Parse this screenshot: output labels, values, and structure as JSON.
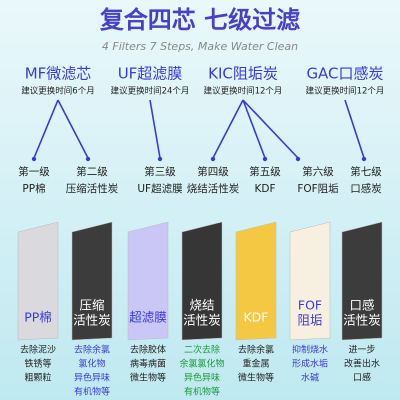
{
  "header": {
    "title": "复合四芯  七级过滤",
    "subtitle": "4 Filters 7 Steps, Make Water Clean"
  },
  "filters": [
    {
      "name": "MF微滤芯",
      "replace": "建议更换时间6个月"
    },
    {
      "name": "UF超滤膜",
      "replace": "建议更换时间24个月"
    },
    {
      "name": "KIC阻垢炭",
      "replace": "建议更换时间12个月"
    },
    {
      "name": "GAC口感炭",
      "replace": "建议更换时间12个月"
    }
  ],
  "stages": [
    {
      "level": "第一级",
      "name": "PP棉"
    },
    {
      "level": "第二级",
      "name": "压缩活性炭"
    },
    {
      "level": "第三级",
      "name": "UF超滤膜"
    },
    {
      "level": "第四级",
      "name": "烧结活性炭"
    },
    {
      "level": "第五级",
      "name": "KDF"
    },
    {
      "level": "第六级",
      "name": "FOF阻垢"
    },
    {
      "level": "第七级",
      "name": "口感炭"
    }
  ],
  "strips": [
    [
      "PP棉"
    ],
    [
      "压缩",
      "活性炭"
    ],
    [
      "超滤膜"
    ],
    [
      "烧结",
      "活性炭"
    ],
    [
      "KDF"
    ],
    [
      "FOF",
      "阻垢"
    ],
    [
      "口感",
      "活性炭"
    ]
  ],
  "descriptions": [
    [
      "去除泥沙",
      "铁锈等",
      "粗颗粒"
    ],
    [
      "去除余氯",
      "氯化物",
      "异色异味",
      "有机物等"
    ],
    [
      "去除胶体",
      "病毒病菌",
      "微生物等"
    ],
    [
      "二次去除",
      "余氯氯化物",
      "异色异味",
      "有机物等"
    ],
    [
      "去除余氯",
      "重金属",
      "微生物等"
    ],
    [
      "抑制烧水",
      "形成水垢",
      "水碱"
    ],
    [
      "进一步",
      "改善出水",
      "口感"
    ]
  ]
}
